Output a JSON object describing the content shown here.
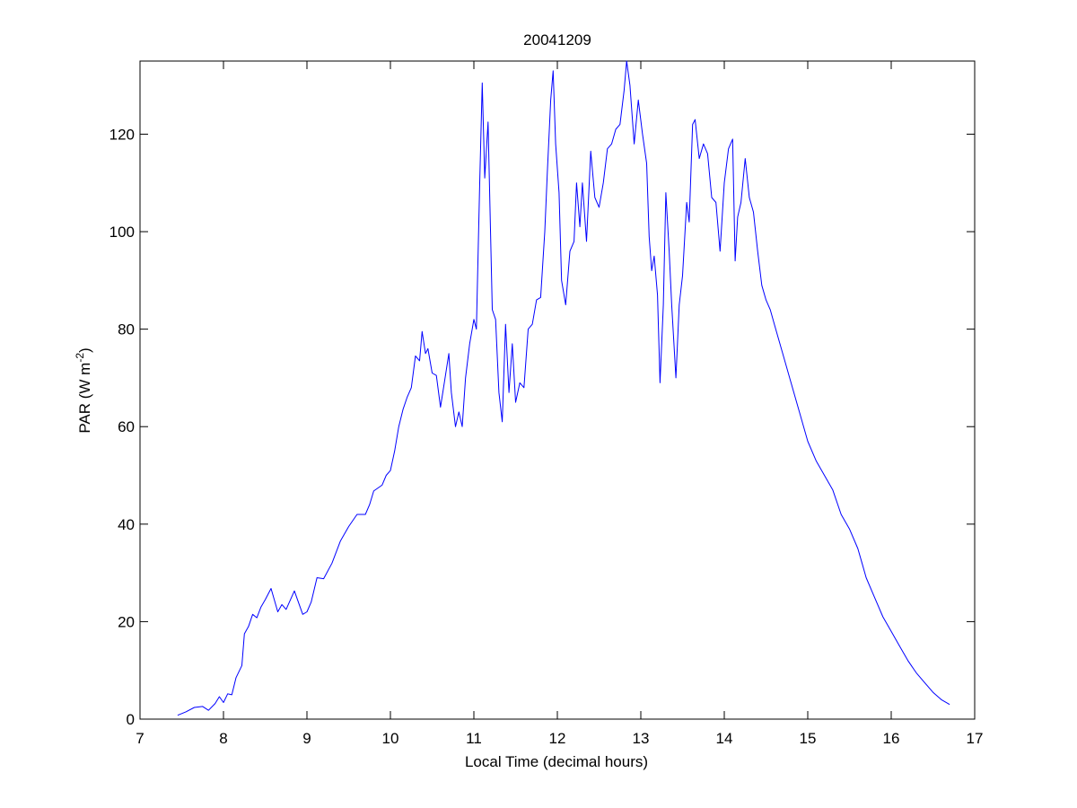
{
  "chart_data": {
    "type": "line",
    "title": "20041209",
    "xlabel": "Local Time (decimal hours)",
    "ylabel": {
      "base": "PAR (W m",
      "superscript": "-2",
      "suffix": ")"
    },
    "xlim": [
      7,
      17
    ],
    "ylim": [
      0,
      135
    ],
    "xticks": [
      7,
      8,
      9,
      10,
      11,
      12,
      13,
      14,
      15,
      16,
      17
    ],
    "yticks": [
      0,
      20,
      40,
      60,
      80,
      100,
      120
    ],
    "grid": false,
    "line_color": "#0000ff",
    "series": [
      {
        "points": [
          [
            7.45,
            0.8
          ],
          [
            7.55,
            1.5
          ],
          [
            7.65,
            2.4
          ],
          [
            7.75,
            2.6
          ],
          [
            7.82,
            1.8
          ],
          [
            7.9,
            3.2
          ],
          [
            7.95,
            4.6
          ],
          [
            8.0,
            3.4
          ],
          [
            8.05,
            5.2
          ],
          [
            8.1,
            5.0
          ],
          [
            8.15,
            8.5
          ],
          [
            8.22,
            11.0
          ],
          [
            8.25,
            17.5
          ],
          [
            8.3,
            19.0
          ],
          [
            8.35,
            21.5
          ],
          [
            8.4,
            20.8
          ],
          [
            8.45,
            23.0
          ],
          [
            8.5,
            24.5
          ],
          [
            8.57,
            26.8
          ],
          [
            8.65,
            22.0
          ],
          [
            8.7,
            23.5
          ],
          [
            8.75,
            22.5
          ],
          [
            8.85,
            26.3
          ],
          [
            8.95,
            21.5
          ],
          [
            9.0,
            22.0
          ],
          [
            9.05,
            24.0
          ],
          [
            9.12,
            29.0
          ],
          [
            9.2,
            28.8
          ],
          [
            9.3,
            32.0
          ],
          [
            9.4,
            36.5
          ],
          [
            9.5,
            39.5
          ],
          [
            9.6,
            42.0
          ],
          [
            9.7,
            42.0
          ],
          [
            9.75,
            44.0
          ],
          [
            9.8,
            46.8
          ],
          [
            9.9,
            48.0
          ],
          [
            9.95,
            50.0
          ],
          [
            10.0,
            51.0
          ],
          [
            10.05,
            55.0
          ],
          [
            10.1,
            60.0
          ],
          [
            10.15,
            63.5
          ],
          [
            10.2,
            66.0
          ],
          [
            10.25,
            68.0
          ],
          [
            10.3,
            74.5
          ],
          [
            10.35,
            73.5
          ],
          [
            10.38,
            79.5
          ],
          [
            10.42,
            75.0
          ],
          [
            10.45,
            76.0
          ],
          [
            10.5,
            71.0
          ],
          [
            10.55,
            70.5
          ],
          [
            10.6,
            64.0
          ],
          [
            10.65,
            69.5
          ],
          [
            10.7,
            75.0
          ],
          [
            10.73,
            67.0
          ],
          [
            10.78,
            60.0
          ],
          [
            10.82,
            63.0
          ],
          [
            10.86,
            60.0
          ],
          [
            10.9,
            70.0
          ],
          [
            10.95,
            77.0
          ],
          [
            11.0,
            82.0
          ],
          [
            11.03,
            80.0
          ],
          [
            11.07,
            110.0
          ],
          [
            11.1,
            130.5
          ],
          [
            11.13,
            111.0
          ],
          [
            11.17,
            122.5
          ],
          [
            11.22,
            84.0
          ],
          [
            11.26,
            82.0
          ],
          [
            11.3,
            67.0
          ],
          [
            11.34,
            61.0
          ],
          [
            11.38,
            81.0
          ],
          [
            11.42,
            67.0
          ],
          [
            11.46,
            77.0
          ],
          [
            11.5,
            65.0
          ],
          [
            11.55,
            69.0
          ],
          [
            11.6,
            68.0
          ],
          [
            11.65,
            80.0
          ],
          [
            11.7,
            81.0
          ],
          [
            11.75,
            86.0
          ],
          [
            11.8,
            86.5
          ],
          [
            11.85,
            100.0
          ],
          [
            11.88,
            112.0
          ],
          [
            11.92,
            127.0
          ],
          [
            11.95,
            133.0
          ],
          [
            11.98,
            118.0
          ],
          [
            12.02,
            108.0
          ],
          [
            12.05,
            90.0
          ],
          [
            12.1,
            85.0
          ],
          [
            12.15,
            96.0
          ],
          [
            12.2,
            98.0
          ],
          [
            12.23,
            110.0
          ],
          [
            12.27,
            101.0
          ],
          [
            12.3,
            110.0
          ],
          [
            12.35,
            98.0
          ],
          [
            12.4,
            116.5
          ],
          [
            12.45,
            107.0
          ],
          [
            12.5,
            105.0
          ],
          [
            12.55,
            110.0
          ],
          [
            12.6,
            117.0
          ],
          [
            12.65,
            118.0
          ],
          [
            12.7,
            121.0
          ],
          [
            12.75,
            122.0
          ],
          [
            12.8,
            129.0
          ],
          [
            12.83,
            135.0
          ],
          [
            12.87,
            130.0
          ],
          [
            12.92,
            118.0
          ],
          [
            12.97,
            127.0
          ],
          [
            13.02,
            120.0
          ],
          [
            13.07,
            114.0
          ],
          [
            13.1,
            99.0
          ],
          [
            13.13,
            92.0
          ],
          [
            13.16,
            95.0
          ],
          [
            13.2,
            87.0
          ],
          [
            13.23,
            69.0
          ],
          [
            13.27,
            85.0
          ],
          [
            13.3,
            108.0
          ],
          [
            13.34,
            96.0
          ],
          [
            13.37,
            85.0
          ],
          [
            13.42,
            70.0
          ],
          [
            13.46,
            85.0
          ],
          [
            13.5,
            91.0
          ],
          [
            13.55,
            106.0
          ],
          [
            13.58,
            102.0
          ],
          [
            13.62,
            122.0
          ],
          [
            13.65,
            123.0
          ],
          [
            13.7,
            115.0
          ],
          [
            13.75,
            118.0
          ],
          [
            13.8,
            116.0
          ],
          [
            13.85,
            107.0
          ],
          [
            13.9,
            106.0
          ],
          [
            13.95,
            96.0
          ],
          [
            14.0,
            110.0
          ],
          [
            14.05,
            117.0
          ],
          [
            14.1,
            119.0
          ],
          [
            14.13,
            94.0
          ],
          [
            14.16,
            103.0
          ],
          [
            14.2,
            106.0
          ],
          [
            14.25,
            115.0
          ],
          [
            14.3,
            107.0
          ],
          [
            14.35,
            104.0
          ],
          [
            14.4,
            96.0
          ],
          [
            14.45,
            89.0
          ],
          [
            14.5,
            86.0
          ],
          [
            14.55,
            84.0
          ],
          [
            14.6,
            81.0
          ],
          [
            14.7,
            75.0
          ],
          [
            14.8,
            69.0
          ],
          [
            14.9,
            63.0
          ],
          [
            15.0,
            57.0
          ],
          [
            15.1,
            53.0
          ],
          [
            15.2,
            50.0
          ],
          [
            15.3,
            47.0
          ],
          [
            15.4,
            42.0
          ],
          [
            15.5,
            39.0
          ],
          [
            15.6,
            35.0
          ],
          [
            15.65,
            32.0
          ],
          [
            15.7,
            29.0
          ],
          [
            15.8,
            25.0
          ],
          [
            15.9,
            21.0
          ],
          [
            16.0,
            18.0
          ],
          [
            16.1,
            15.0
          ],
          [
            16.2,
            12.0
          ],
          [
            16.3,
            9.5
          ],
          [
            16.4,
            7.5
          ],
          [
            16.5,
            5.5
          ],
          [
            16.6,
            4.0
          ],
          [
            16.7,
            3.0
          ]
        ]
      }
    ]
  }
}
